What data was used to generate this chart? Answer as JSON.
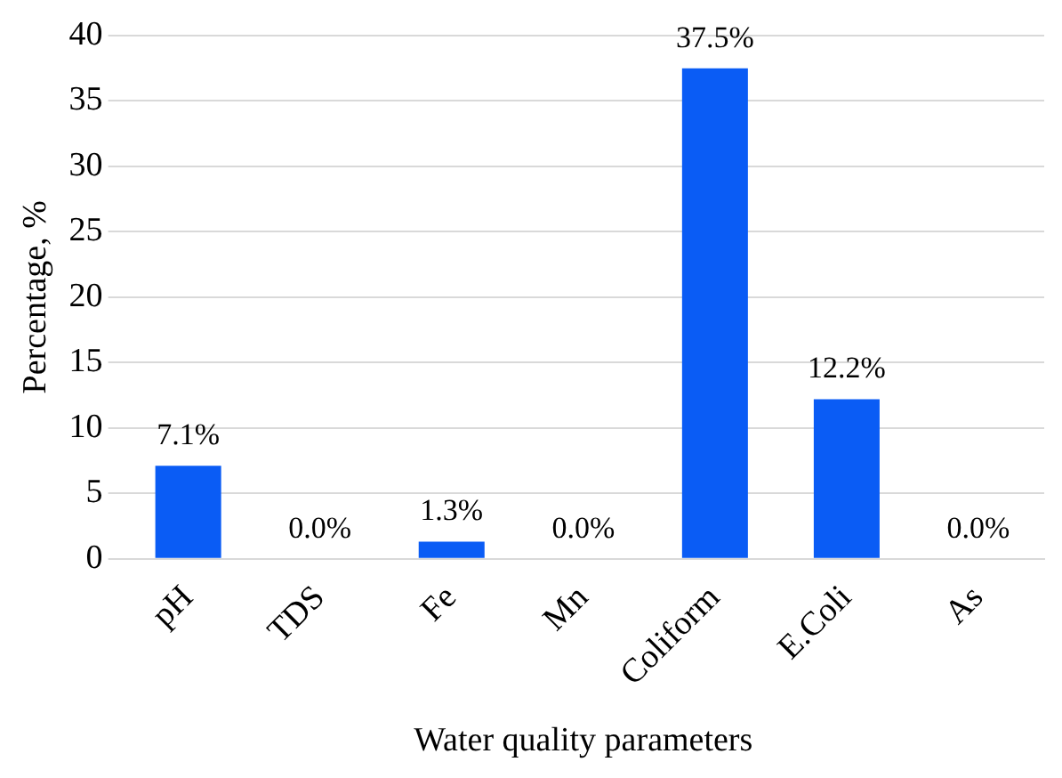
{
  "chart_data": {
    "type": "bar",
    "xlabel": "Water quality parameters",
    "ylabel": "Percentage, %",
    "categories": [
      "pH",
      "TDS",
      "Fe",
      "Mn",
      "Coliform",
      "E.Coli",
      "As"
    ],
    "values": [
      7.1,
      0.0,
      1.3,
      0.0,
      37.5,
      12.2,
      0.0
    ],
    "value_labels": [
      "7.1%",
      "0.0%",
      "1.3%",
      "0.0%",
      "37.5%",
      "12.2%",
      "0.0%"
    ],
    "color": "#0a5cf5",
    "ylim": [
      0,
      40
    ],
    "yticks": [
      0,
      5,
      10,
      15,
      20,
      25,
      30,
      35,
      40
    ],
    "grid": "y",
    "legend": false
  }
}
